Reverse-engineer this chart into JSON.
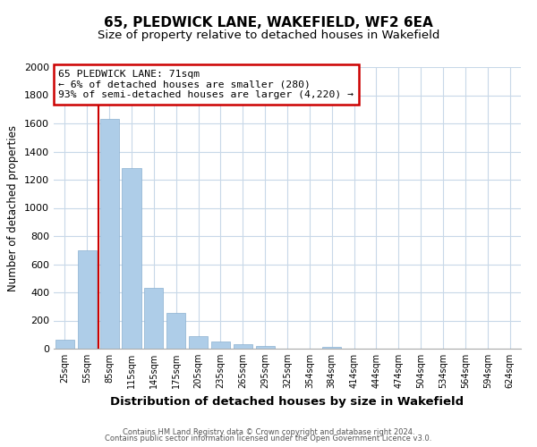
{
  "title": "65, PLEDWICK LANE, WAKEFIELD, WF2 6EA",
  "subtitle": "Size of property relative to detached houses in Wakefield",
  "xlabel": "Distribution of detached houses by size in Wakefield",
  "ylabel": "Number of detached properties",
  "bar_labels": [
    "25sqm",
    "55sqm",
    "85sqm",
    "115sqm",
    "145sqm",
    "175sqm",
    "205sqm",
    "235sqm",
    "265sqm",
    "295sqm",
    "325sqm",
    "354sqm",
    "384sqm",
    "414sqm",
    "444sqm",
    "474sqm",
    "504sqm",
    "534sqm",
    "564sqm",
    "594sqm",
    "624sqm"
  ],
  "bar_values": [
    65,
    700,
    1630,
    1280,
    430,
    255,
    90,
    52,
    30,
    22,
    0,
    0,
    15,
    0,
    0,
    0,
    0,
    0,
    0,
    0,
    0
  ],
  "bar_color": "#aecde8",
  "marker_line_color": "#cc0000",
  "annotation_lines": [
    "65 PLEDWICK LANE: 71sqm",
    "← 6% of detached houses are smaller (280)",
    "93% of semi-detached houses are larger (4,220) →"
  ],
  "annotation_box_color": "#cc0000",
  "ylim": [
    0,
    2000
  ],
  "yticks": [
    0,
    200,
    400,
    600,
    800,
    1000,
    1200,
    1400,
    1600,
    1800,
    2000
  ],
  "footer_line1": "Contains HM Land Registry data © Crown copyright and database right 2024.",
  "footer_line2": "Contains public sector information licensed under the Open Government Licence v3.0.",
  "bg_color": "#ffffff",
  "grid_color": "#c8d8e8",
  "title_fontsize": 11,
  "subtitle_fontsize": 9.5
}
